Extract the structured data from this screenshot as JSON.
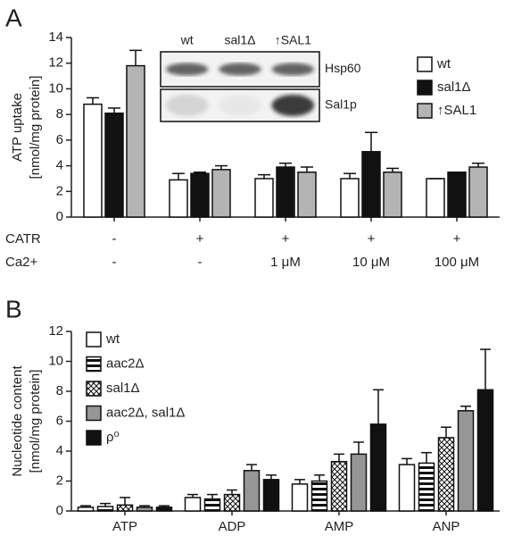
{
  "chart_data": [
    {
      "type": "bar",
      "panel": "A",
      "ylabel": [
        "ATP uptake",
        "[nmol/mg protein]"
      ],
      "categories": [
        null,
        null,
        null,
        null,
        null
      ],
      "row_labels": [
        "CATR",
        "Ca2+"
      ],
      "conditions": [
        [
          "-",
          "+",
          "+",
          "+",
          "+"
        ],
        [
          "-",
          "-",
          "1 μM",
          "10 μM",
          "100 μM"
        ]
      ],
      "series": [
        {
          "name": "wt",
          "color": "#ffffff",
          "values": [
            8.8,
            2.9,
            3.0,
            3.0,
            3.0
          ],
          "errors": [
            0.5,
            0.5,
            0.3,
            0.4,
            0
          ]
        },
        {
          "name": "sal1Δ",
          "color": "#111111",
          "values": [
            8.1,
            3.4,
            3.9,
            5.1,
            3.5
          ],
          "errors": [
            0.4,
            0.1,
            0.3,
            1.5,
            0
          ]
        },
        {
          "name": "↑SAL1",
          "color": "#b4b4b4",
          "values": [
            11.8,
            3.7,
            3.5,
            3.5,
            3.9
          ],
          "errors": [
            1.2,
            0.3,
            0.4,
            0.3,
            0.3
          ]
        }
      ],
      "ylim": [
        0,
        14
      ],
      "yticks": [
        0,
        2,
        4,
        6,
        8,
        10,
        12,
        14
      ],
      "legend": "upper right",
      "inset": {
        "lanes": [
          "wt",
          "sal1Δ",
          "↑SAL1"
        ],
        "blots": [
          "Hsp60",
          "Sal1p"
        ]
      }
    },
    {
      "type": "bar",
      "panel": "B",
      "ylabel": [
        "Nucleotide content",
        "[nmol/mg protein]"
      ],
      "categories": [
        "ATP",
        "ADP",
        "AMP",
        "ANP"
      ],
      "series": [
        {
          "name": "wt",
          "color": "#ffffff",
          "values": [
            0.25,
            0.9,
            1.8,
            3.1
          ],
          "errors": [
            0.1,
            0.2,
            0.3,
            0.4
          ]
        },
        {
          "name": "aac2Δ",
          "color": "#111111",
          "pattern": "hstripes",
          "values": [
            0.3,
            0.8,
            2.0,
            3.2
          ],
          "errors": [
            0.2,
            0.3,
            0.4,
            0.7
          ]
        },
        {
          "name": "sal1Δ",
          "color": "#111111",
          "pattern": "crosshatch",
          "values": [
            0.4,
            1.1,
            3.3,
            4.9
          ],
          "errors": [
            0.5,
            0.3,
            0.5,
            0.7
          ]
        },
        {
          "name": "aac2Δ, sal1Δ",
          "color": "#969696",
          "values": [
            0.25,
            2.7,
            3.8,
            6.7
          ],
          "errors": [
            0.1,
            0.4,
            0.8,
            0.3
          ]
        },
        {
          "name": "ρ⁰",
          "color": "#111111",
          "values": [
            0.25,
            2.1,
            5.8,
            8.1
          ],
          "errors": [
            0.1,
            0.3,
            2.3,
            2.7
          ]
        }
      ],
      "ylim": [
        0,
        12
      ],
      "yticks": [
        0,
        2,
        4,
        6,
        8,
        10,
        12
      ],
      "legend": "upper left"
    }
  ]
}
